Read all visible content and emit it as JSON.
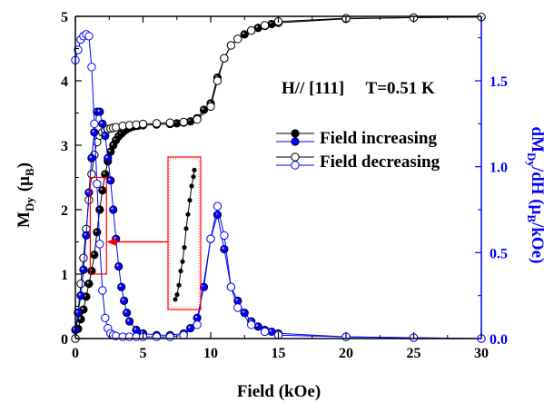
{
  "chart_data": {
    "type": "scatter",
    "annotation": "H// [111]     T=0.51 K",
    "xlabel": "Field (kOe)",
    "ylabel_left": {
      "main": "M",
      "sub": "Dy",
      "unit_open": "(μ",
      "unit_sub": "B",
      "unit_close": ")"
    },
    "ylabel_right": {
      "d": "dM",
      "dsub": "Dy",
      "slash": "/dH (μ",
      "unitsub": "B",
      "unitend": "/kOe)"
    },
    "xlim": [
      0,
      30
    ],
    "ylim_left": [
      0,
      5
    ],
    "ylim_right": [
      0,
      1.875
    ],
    "xticks": [
      0,
      5,
      10,
      15,
      20,
      25,
      30
    ],
    "xtick_labels": [
      "0",
      "5",
      "10",
      "15",
      "20",
      "25",
      "30"
    ],
    "yticks_left": [
      0,
      1,
      2,
      3,
      4,
      5
    ],
    "yticks_left_labels": [
      "0",
      "1",
      "2",
      "3",
      "4",
      "5"
    ],
    "yticks_right": [
      0,
      0.5,
      1.0,
      1.5
    ],
    "yticks_right_labels": [
      "0.0",
      "0.5",
      "1.0",
      "1.5"
    ],
    "colors": {
      "magnetization": "#000000",
      "derivative": "#0000ff",
      "inset": "#ff0000"
    },
    "legend": [
      {
        "label": "Field increasing",
        "style": "filled"
      },
      {
        "label": "Field decreasing",
        "style": "open"
      }
    ],
    "series": [
      {
        "name": "Field increasing",
        "axis": "left",
        "color": "#000000",
        "marker": "filled",
        "x": [
          0.0,
          0.2,
          0.4,
          0.6,
          0.8,
          1.0,
          1.2,
          1.4,
          1.6,
          1.8,
          2.0,
          2.2,
          2.4,
          2.6,
          2.8,
          3.0,
          3.2,
          3.4,
          3.6,
          3.8,
          4.0,
          4.3,
          4.6,
          5.0,
          6.0,
          7.0,
          7.5,
          8.0,
          8.5,
          9.0,
          9.5,
          10.0,
          10.5,
          11.0,
          11.5,
          12.0,
          12.5,
          13.0,
          13.5,
          14.0,
          14.5,
          15.0,
          20.0,
          25.0,
          30.0
        ],
        "y": [
          0.0,
          0.15,
          0.3,
          0.45,
          0.65,
          0.85,
          1.05,
          1.3,
          1.65,
          2.0,
          2.3,
          2.55,
          2.75,
          2.9,
          3.0,
          3.08,
          3.14,
          3.18,
          3.22,
          3.25,
          3.27,
          3.29,
          3.3,
          3.31,
          3.32,
          3.33,
          3.34,
          3.35,
          3.37,
          3.42,
          3.55,
          3.65,
          4.05,
          4.35,
          4.55,
          4.65,
          4.72,
          4.78,
          4.82,
          4.85,
          4.88,
          4.9,
          4.96,
          4.98,
          4.99
        ]
      },
      {
        "name": "Field decreasing",
        "axis": "left",
        "color": "#000000",
        "marker": "open",
        "x": [
          0.0,
          0.2,
          0.4,
          0.6,
          0.8,
          1.0,
          1.2,
          1.4,
          1.6,
          1.8,
          2.0,
          2.2,
          2.4,
          2.6,
          2.8,
          3.0,
          3.5,
          4.0,
          4.5,
          5.0,
          6.0,
          7.0,
          8.0,
          9.0,
          10.0,
          10.5,
          11.0,
          11.5,
          12.0,
          13.0,
          14.0,
          15.0,
          20.0,
          25.0,
          30.0
        ],
        "y": [
          0.0,
          0.4,
          0.85,
          1.25,
          1.7,
          2.15,
          2.55,
          2.85,
          3.05,
          3.15,
          3.2,
          3.23,
          3.25,
          3.26,
          3.27,
          3.28,
          3.3,
          3.31,
          3.32,
          3.33,
          3.34,
          3.35,
          3.36,
          3.4,
          3.6,
          4.0,
          4.35,
          4.55,
          4.65,
          4.78,
          4.86,
          4.92,
          4.97,
          4.98,
          4.99
        ]
      },
      {
        "name": "Field increasing",
        "axis": "right",
        "color": "#0000ff",
        "marker": "filled",
        "x": [
          0.0,
          0.2,
          0.4,
          0.6,
          0.8,
          1.0,
          1.2,
          1.4,
          1.6,
          1.8,
          2.0,
          2.2,
          2.4,
          2.6,
          2.8,
          3.0,
          3.2,
          3.4,
          3.6,
          3.8,
          4.0,
          4.5,
          5.0,
          6.0,
          7.0,
          8.0,
          8.5,
          9.0,
          9.5,
          10.0,
          10.5,
          11.0,
          11.5,
          12.0,
          12.5,
          13.0,
          13.5,
          14.0,
          14.5,
          15.0,
          20.0,
          25.0,
          30.0
        ],
        "y": [
          0.05,
          0.15,
          0.25,
          0.4,
          0.6,
          0.85,
          1.05,
          1.2,
          1.32,
          1.32,
          1.25,
          1.18,
          1.05,
          0.92,
          0.75,
          0.58,
          0.42,
          0.3,
          0.22,
          0.15,
          0.1,
          0.05,
          0.03,
          0.02,
          0.02,
          0.03,
          0.06,
          0.12,
          0.3,
          0.58,
          0.72,
          0.52,
          0.3,
          0.22,
          0.15,
          0.1,
          0.07,
          0.05,
          0.04,
          0.03,
          0.01,
          0.005,
          0.0
        ]
      },
      {
        "name": "Field decreasing",
        "axis": "right",
        "color": "#0000ff",
        "marker": "open",
        "x": [
          0.0,
          0.2,
          0.4,
          0.6,
          0.8,
          1.0,
          1.2,
          1.4,
          1.6,
          1.8,
          2.0,
          2.2,
          2.4,
          2.6,
          2.8,
          3.0,
          3.5,
          4.0,
          4.5,
          5.0,
          6.0,
          7.0,
          8.0,
          9.0,
          10.0,
          10.5,
          11.0,
          11.5,
          12.0,
          13.0,
          14.0,
          15.0,
          20.0,
          25.0,
          30.0
        ],
        "y": [
          1.62,
          1.68,
          1.74,
          1.76,
          1.77,
          1.76,
          1.58,
          1.25,
          0.9,
          0.55,
          0.28,
          0.12,
          0.06,
          0.03,
          0.02,
          0.015,
          0.01,
          0.01,
          0.01,
          0.01,
          0.01,
          0.01,
          0.02,
          0.08,
          0.58,
          0.77,
          0.6,
          0.3,
          0.18,
          0.08,
          0.04,
          0.02,
          0.01,
          0.005,
          0.0
        ]
      }
    ],
    "inset": {
      "zoom_region": {
        "x": [
          1.1,
          2.3
        ],
        "y": [
          1.0,
          2.5
        ]
      },
      "points": [
        {
          "x": 1.2,
          "y": 1.05
        },
        {
          "x": 1.3,
          "y": 1.1
        },
        {
          "x": 1.4,
          "y": 1.2
        },
        {
          "x": 1.5,
          "y": 1.35
        },
        {
          "x": 1.6,
          "y": 1.45
        },
        {
          "x": 1.7,
          "y": 1.6
        },
        {
          "x": 1.8,
          "y": 1.8
        },
        {
          "x": 1.9,
          "y": 1.95
        },
        {
          "x": 2.0,
          "y": 2.1
        },
        {
          "x": 2.1,
          "y": 2.25
        },
        {
          "x": 2.2,
          "y": 2.35
        },
        {
          "x": 2.25,
          "y": 2.42
        }
      ]
    }
  }
}
